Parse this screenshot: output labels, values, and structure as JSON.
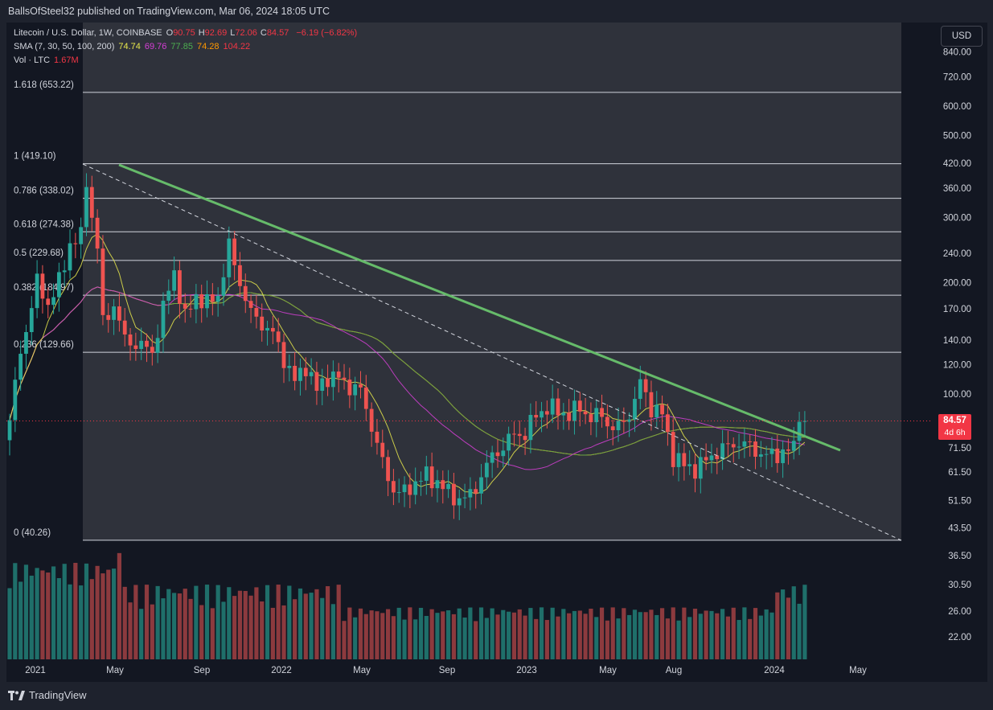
{
  "header": {
    "publisher_line": "BallsOfSteel32 published on TradingView.com, Mar 06, 2024 18:05 UTC"
  },
  "legend": {
    "symbol": "Litecoin / U.S. Dollar, 1W, COINBASE",
    "ohlc": [
      {
        "label": "O",
        "value": "90.75"
      },
      {
        "label": "H",
        "value": "92.69"
      },
      {
        "label": "L",
        "value": "72.06"
      },
      {
        "label": "C",
        "value": "84.57"
      }
    ],
    "change": "−6.19 (−6.82%)",
    "sma_label": "SMA (7, 30, 50, 100, 200)",
    "sma_values": [
      {
        "value": "74.74",
        "color": "#e8e84c"
      },
      {
        "value": "69.76",
        "color": "#d63fd6"
      },
      {
        "value": "77.85",
        "color": "#4caf50"
      },
      {
        "value": "74.28",
        "color": "#ff9800"
      },
      {
        "value": "104.22",
        "color": "#f23645"
      }
    ],
    "vol_label": "Vol · LTC",
    "vol_value": "1.67M"
  },
  "toolbar": {
    "currency_label": "USD"
  },
  "price_tag": {
    "price": "84.57",
    "countdown": "4d 6h"
  },
  "footer": {
    "brand": "TradingView"
  },
  "colors": {
    "up": "#26a69a",
    "down": "#ef5350",
    "fib_band": "#2f323b",
    "trendline": "#66bb6a",
    "sma7": "#e8e84c",
    "sma30": "#d63fd6",
    "sma50": "#4caf50",
    "sma100": "#ff9800",
    "sma200": "#e53935"
  },
  "chart_data": {
    "type": "candlestick",
    "y_scale": "log",
    "ylim": [
      19,
      1000
    ],
    "y_ticks": [
      "840.00",
      "720.00",
      "600.00",
      "500.00",
      "420.00",
      "360.00",
      "300.00",
      "240.00",
      "200.00",
      "170.00",
      "140.00",
      "120.00",
      "100.00",
      "71.50",
      "61.50",
      "51.50",
      "43.50",
      "36.50",
      "30.50",
      "26.00",
      "22.00"
    ],
    "x_ticks": [
      "2021",
      "May",
      "Sep",
      "2022",
      "May",
      "Sep",
      "2023",
      "May",
      "Aug",
      "2024",
      "May"
    ],
    "fib_levels": [
      {
        "label": "1.618 (653.22)",
        "value": 653.22
      },
      {
        "label": "1 (419.10)",
        "value": 419.1
      },
      {
        "label": "0.786 (338.02)",
        "value": 338.02
      },
      {
        "label": "0.618 (274.38)",
        "value": 274.38
      },
      {
        "label": "0.5 (229.68)",
        "value": 229.68
      },
      {
        "label": "0.382 (184.97)",
        "value": 184.97
      },
      {
        "label": "0.236 (129.66)",
        "value": 129.66
      },
      {
        "label": "0 (40.26)",
        "value": 40.26
      }
    ],
    "last_price": 84.57,
    "weekly_close_keyframes": [
      {
        "week": 0,
        "close": 85
      },
      {
        "week": 2,
        "close": 130
      },
      {
        "week": 5,
        "close": 200
      },
      {
        "week": 7,
        "close": 175
      },
      {
        "week": 9,
        "close": 200
      },
      {
        "week": 11,
        "close": 255
      },
      {
        "week": 13,
        "close": 265
      },
      {
        "week": 14,
        "close": 380
      },
      {
        "week": 15,
        "close": 300
      },
      {
        "week": 16,
        "close": 250
      },
      {
        "week": 17,
        "close": 155
      },
      {
        "week": 19,
        "close": 175
      },
      {
        "week": 21,
        "close": 140
      },
      {
        "week": 24,
        "close": 135
      },
      {
        "week": 26,
        "close": 130
      },
      {
        "week": 28,
        "close": 170
      },
      {
        "week": 30,
        "close": 215
      },
      {
        "week": 32,
        "close": 160
      },
      {
        "week": 34,
        "close": 185
      },
      {
        "week": 36,
        "close": 175
      },
      {
        "week": 38,
        "close": 185
      },
      {
        "week": 40,
        "close": 250
      },
      {
        "week": 42,
        "close": 200
      },
      {
        "week": 44,
        "close": 165
      },
      {
        "week": 46,
        "close": 155
      },
      {
        "week": 48,
        "close": 145
      },
      {
        "week": 50,
        "close": 125
      },
      {
        "week": 52,
        "close": 108
      },
      {
        "week": 54,
        "close": 120
      },
      {
        "week": 56,
        "close": 102
      },
      {
        "week": 58,
        "close": 112
      },
      {
        "week": 60,
        "close": 110
      },
      {
        "week": 62,
        "close": 105
      },
      {
        "week": 64,
        "close": 102
      },
      {
        "week": 66,
        "close": 82
      },
      {
        "week": 68,
        "close": 65
      },
      {
        "week": 70,
        "close": 55
      },
      {
        "week": 72,
        "close": 54
      },
      {
        "week": 74,
        "close": 58
      },
      {
        "week": 76,
        "close": 60
      },
      {
        "week": 78,
        "close": 58
      },
      {
        "week": 80,
        "close": 54
      },
      {
        "week": 82,
        "close": 52
      },
      {
        "week": 84,
        "close": 53
      },
      {
        "week": 86,
        "close": 60
      },
      {
        "week": 88,
        "close": 68
      },
      {
        "week": 90,
        "close": 72
      },
      {
        "week": 92,
        "close": 78
      },
      {
        "week": 94,
        "close": 78
      },
      {
        "week": 96,
        "close": 88
      },
      {
        "week": 98,
        "close": 92
      },
      {
        "week": 100,
        "close": 90
      },
      {
        "week": 102,
        "close": 88
      },
      {
        "week": 104,
        "close": 92
      },
      {
        "week": 106,
        "close": 86
      },
      {
        "week": 108,
        "close": 88
      },
      {
        "week": 110,
        "close": 80
      },
      {
        "week": 112,
        "close": 84
      },
      {
        "week": 114,
        "close": 95
      },
      {
        "week": 115,
        "close": 108
      },
      {
        "week": 117,
        "close": 92
      },
      {
        "week": 119,
        "close": 88
      },
      {
        "week": 121,
        "close": 68
      },
      {
        "week": 123,
        "close": 64
      },
      {
        "week": 125,
        "close": 63
      },
      {
        "week": 127,
        "close": 66
      },
      {
        "week": 129,
        "close": 70
      },
      {
        "week": 131,
        "close": 72
      },
      {
        "week": 133,
        "close": 74
      },
      {
        "week": 135,
        "close": 72
      },
      {
        "week": 137,
        "close": 69
      },
      {
        "week": 139,
        "close": 68
      },
      {
        "week": 141,
        "close": 70
      },
      {
        "week": 143,
        "close": 71
      },
      {
        "week": 144,
        "close": 90
      },
      {
        "week": 145,
        "close": 84.57
      }
    ]
  }
}
